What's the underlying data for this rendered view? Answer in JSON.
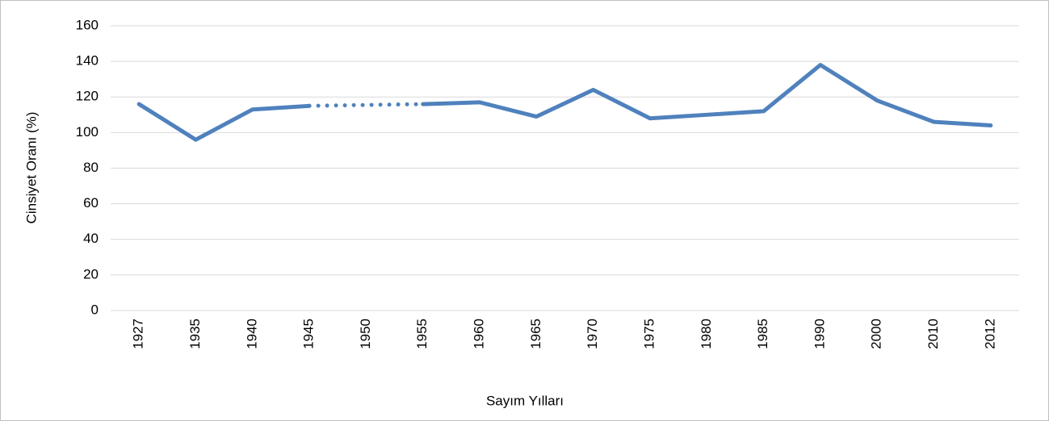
{
  "chart_data": {
    "type": "line",
    "x_label": "Sayım Yılları",
    "y_label": "Cinsiyet Oranı (%)",
    "categories": [
      "1927",
      "1935",
      "1940",
      "1945",
      "1950",
      "1955",
      "1960",
      "1965",
      "1970",
      "1975",
      "1980",
      "1985",
      "1990",
      "2000",
      "2010",
      "2012"
    ],
    "values": [
      116,
      96,
      113,
      115,
      null,
      116,
      117,
      109,
      124,
      108,
      110,
      112,
      138,
      118,
      106,
      104
    ],
    "color": "#4f81bd",
    "gap_line": "dotted",
    "ylim": [
      0,
      160
    ],
    "yticks": [
      0,
      20,
      40,
      60,
      80,
      100,
      120,
      140,
      160
    ],
    "grid": true
  }
}
